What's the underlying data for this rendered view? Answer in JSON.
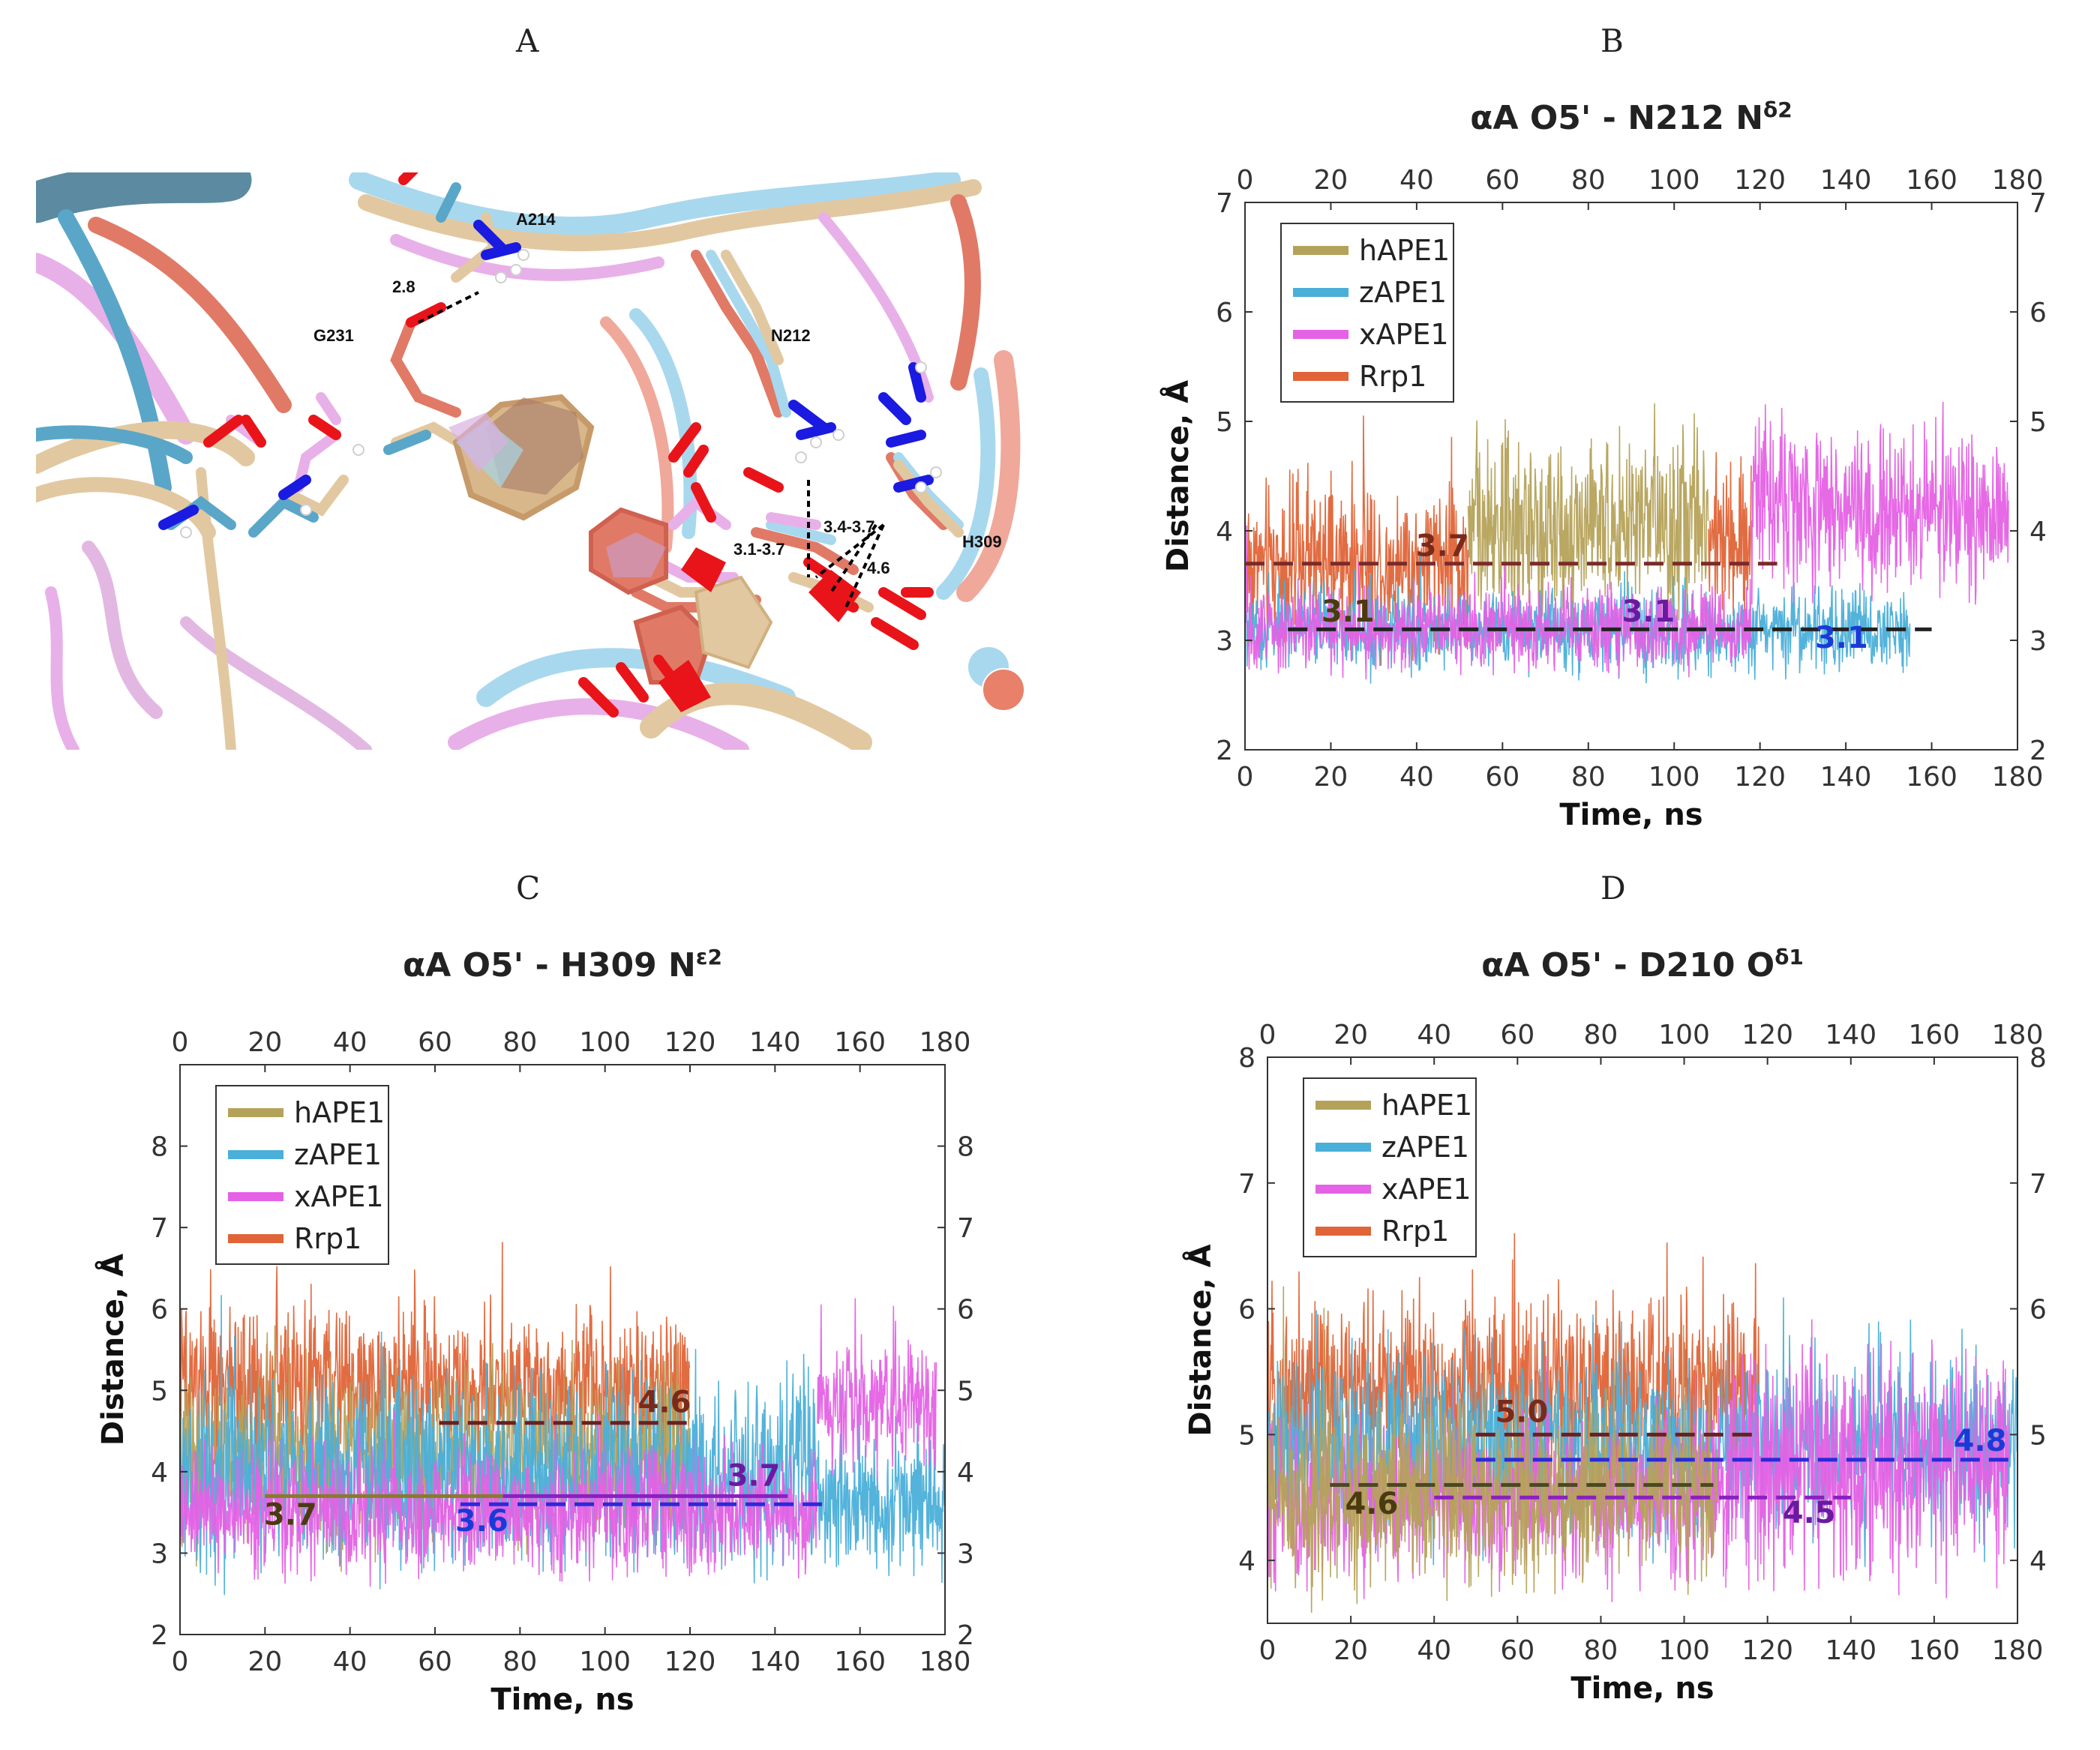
{
  "panel_labels": {
    "a": "A",
    "b": "B",
    "c": "C",
    "d": "D"
  },
  "structure": {
    "labels": [
      "A214",
      "2.8",
      "G231",
      "N212",
      "H309",
      "3.1-3.7",
      "3.4-3.7",
      "4.6"
    ]
  },
  "colors": {
    "hAPE1": "#b5a25a",
    "zAPE1": "#4aafd9",
    "xAPE1": "#e561e5",
    "Rrp1": "#e06437"
  },
  "chart_data": [
    {
      "id": "B",
      "type": "line",
      "title_main": "αA O5' - N212 N",
      "title_sup": "δ2",
      "xlabel": "Time, ns",
      "ylabel": "Distance, Å",
      "xlim": [
        0,
        180
      ],
      "ylim": [
        2,
        7
      ],
      "xticks": [
        0,
        20,
        40,
        60,
        80,
        100,
        120,
        140,
        160,
        180
      ],
      "yticks": [
        2,
        3,
        4,
        5,
        6,
        7
      ],
      "legend": [
        "hAPE1",
        "zAPE1",
        "xAPE1",
        "Rrp1"
      ],
      "series": [
        {
          "name": "Rrp1",
          "segments": [
            [
              0,
              52,
              3.7,
              0.35
            ],
            [
              108,
              118,
              3.9,
              0.35
            ]
          ]
        },
        {
          "name": "hAPE1",
          "segments": [
            [
              52,
              108,
              4.05,
              0.4
            ]
          ]
        },
        {
          "name": "zAPE1",
          "segments": [
            [
              0,
              155,
              3.1,
              0.18
            ]
          ]
        },
        {
          "name": "xAPE1",
          "segments": [
            [
              0,
              118,
              3.1,
              0.18
            ],
            [
              118,
              178,
              4.2,
              0.35
            ]
          ]
        }
      ],
      "mean_lines": [
        {
          "x": [
            0,
            124
          ],
          "y": 3.7,
          "color": "#7a2a2a",
          "dash": true
        },
        {
          "x": [
            10,
            160
          ],
          "y": 3.1,
          "color": "#222222",
          "dash": true
        }
      ],
      "annotations": [
        {
          "text": "3.7",
          "x": 46,
          "y": 3.77,
          "color": "#7a2a1a"
        },
        {
          "text": "3.1",
          "x": 24,
          "y": 3.17,
          "color": "#4a3a10"
        },
        {
          "text": "3.1",
          "x": 94,
          "y": 3.17,
          "color": "#6a1aa0"
        },
        {
          "text": "3.1",
          "x": 139,
          "y": 2.93,
          "color": "#1a3ad8"
        }
      ]
    },
    {
      "id": "C",
      "type": "line",
      "title_main": "αA O5' - H309 N",
      "title_sup": "ε2",
      "xlabel": "Time, ns",
      "ylabel": "Distance, Å",
      "xlim": [
        0,
        180
      ],
      "ylim": [
        2,
        9
      ],
      "xticks": [
        0,
        20,
        40,
        60,
        80,
        100,
        120,
        140,
        160,
        180
      ],
      "yticks": [
        2,
        3,
        4,
        5,
        6,
        7,
        8
      ],
      "legend": [
        "hAPE1",
        "zAPE1",
        "xAPE1",
        "Rrp1"
      ],
      "series": [
        {
          "name": "Rrp1",
          "segments": [
            [
              0,
              120,
              5.05,
              0.45
            ]
          ]
        },
        {
          "name": "hAPE1",
          "segments": [
            [
              0,
              120,
              4.2,
              0.5
            ]
          ]
        },
        {
          "name": "zAPE1",
          "segments": [
            [
              0,
              150,
              4.0,
              0.55
            ],
            [
              150,
              180,
              3.6,
              0.4
            ]
          ]
        },
        {
          "name": "xAPE1",
          "segments": [
            [
              0,
              150,
              3.5,
              0.35
            ],
            [
              150,
              178,
              4.8,
              0.4
            ]
          ]
        }
      ],
      "mean_lines": [
        {
          "x": [
            20,
            76
          ],
          "y": 3.7,
          "color": "#8a7a2a",
          "dash": false
        },
        {
          "x": [
            61,
            120
          ],
          "y": 4.6,
          "color": "#6a2020",
          "dash": true
        },
        {
          "x": [
            66,
            152
          ],
          "y": 3.6,
          "color": "#2a2ad8",
          "dash": true
        },
        {
          "x": [
            76,
            143
          ],
          "y": 3.7,
          "color": "#8a20c0",
          "dash": false
        }
      ],
      "annotations": [
        {
          "text": "4.6",
          "x": 114,
          "y": 4.73,
          "color": "#7a2a1a"
        },
        {
          "text": "3.7",
          "x": 26,
          "y": 3.35,
          "color": "#4a3a10"
        },
        {
          "text": "3.6",
          "x": 71,
          "y": 3.27,
          "color": "#1a3ad8"
        },
        {
          "text": "3.7",
          "x": 135,
          "y": 3.83,
          "color": "#6a1aa0"
        }
      ]
    },
    {
      "id": "D",
      "type": "line",
      "title_main": "αA O5' - D210 O",
      "title_sup": "δ1",
      "xlabel": "Time, ns",
      "ylabel": "Distance, Å",
      "xlim": [
        0,
        180
      ],
      "ylim": [
        3.5,
        8
      ],
      "xticks": [
        0,
        20,
        40,
        60,
        80,
        100,
        120,
        140,
        160,
        180
      ],
      "yticks": [
        4,
        5,
        6,
        7,
        8
      ],
      "legend": [
        "hAPE1",
        "zAPE1",
        "xAPE1",
        "Rrp1"
      ],
      "series": [
        {
          "name": "Rrp1",
          "segments": [
            [
              0,
              118,
              5.35,
              0.35
            ]
          ]
        },
        {
          "name": "zAPE1",
          "segments": [
            [
              0,
              180,
              4.9,
              0.35
            ]
          ]
        },
        {
          "name": "xAPE1",
          "segments": [
            [
              0,
              110,
              4.5,
              0.3
            ],
            [
              110,
              178,
              4.8,
              0.45
            ]
          ]
        },
        {
          "name": "hAPE1",
          "segments": [
            [
              0,
              108,
              4.55,
              0.35
            ]
          ]
        }
      ],
      "mean_lines": [
        {
          "x": [
            50,
            118
          ],
          "y": 5.0,
          "color": "#6a2020",
          "dash": true
        },
        {
          "x": [
            50,
            180
          ],
          "y": 4.8,
          "color": "#2a2ad8",
          "dash": true
        },
        {
          "x": [
            15,
            107
          ],
          "y": 4.6,
          "color": "#4a4a20",
          "dash": true
        },
        {
          "x": [
            40,
            140
          ],
          "y": 4.5,
          "color": "#8a20c0",
          "dash": true
        }
      ],
      "annotations": [
        {
          "text": "5.0",
          "x": 61,
          "y": 5.1,
          "color": "#7a2a1a"
        },
        {
          "text": "4.8",
          "x": 171,
          "y": 4.87,
          "color": "#1a3ad8"
        },
        {
          "text": "4.6",
          "x": 25,
          "y": 4.37,
          "color": "#4a3a10"
        },
        {
          "text": "4.5",
          "x": 130,
          "y": 4.3,
          "color": "#6a1aa0"
        }
      ]
    }
  ]
}
